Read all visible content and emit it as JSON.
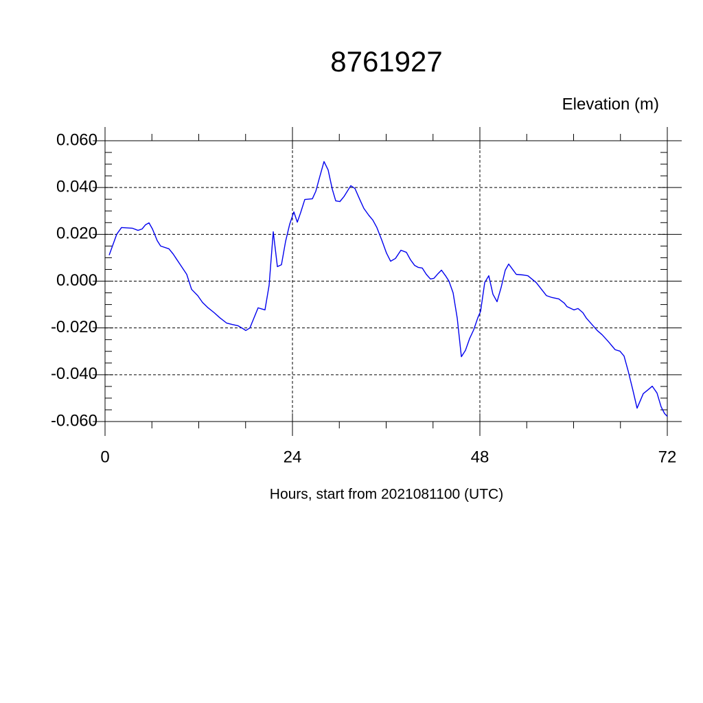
{
  "chart_data": {
    "type": "line",
    "title": "8761927",
    "subtitle": "Elevation (m)",
    "x_label": "Hours, start from 2021081100 (UTC)",
    "xlim": [
      0,
      72
    ],
    "xticks": [
      0,
      24,
      48,
      72
    ],
    "xminorticks": [
      6,
      12,
      18,
      30,
      36,
      42,
      54,
      60,
      66
    ],
    "ylim": [
      -0.06,
      0.06
    ],
    "yticks": [
      {
        "value": -0.06,
        "label": "-0.060"
      },
      {
        "value": -0.04,
        "label": "-0.040"
      },
      {
        "value": -0.02,
        "label": "-0.020"
      },
      {
        "value": 0,
        "label": "0.000"
      },
      {
        "value": 0.02,
        "label": "0.020"
      },
      {
        "value": 0.04,
        "label": "0.040"
      },
      {
        "value": 0.06,
        "label": "0.060"
      }
    ],
    "yminorticks": [
      -0.055,
      -0.05,
      -0.045,
      -0.035,
      -0.03,
      -0.025,
      -0.015,
      -0.01,
      -0.005,
      0.005,
      0.01,
      0.015,
      0.025,
      0.03,
      0.035,
      0.045,
      0.05,
      0.055
    ],
    "grid": true,
    "series": [
      {
        "color": "#0000ee",
        "x": [
          0.53,
          1.49,
          2.11,
          3.52,
          4.22,
          4.75,
          5.19,
          5.63,
          6.07,
          6.68,
          7.12,
          8.18,
          8.7,
          9.58,
          10.46,
          11.08,
          11.87,
          12.48,
          13.19,
          13.98,
          14.68,
          15.56,
          16.26,
          17.05,
          17.76,
          18.02,
          18.55,
          19.6,
          20.48,
          21.01,
          21.54,
          22.07,
          22.59,
          23.12,
          23.65,
          24.18,
          24.62,
          25.05,
          25.58,
          26.55,
          26.99,
          27.52,
          28.04,
          28.57,
          29.1,
          29.54,
          30.07,
          30.59,
          31.47,
          32.0,
          32.62,
          33.14,
          33.76,
          34.29,
          34.81,
          35.43,
          36.04,
          36.57,
          37.19,
          37.89,
          38.59,
          39.12,
          39.65,
          40.09,
          40.62,
          41.14,
          41.67,
          42.11,
          42.64,
          43.08,
          43.6,
          44.04,
          44.57,
          45.1,
          45.63,
          46.15,
          46.68,
          47.21,
          47.74,
          48.09,
          48.62,
          49.14,
          49.67,
          50.2,
          50.73,
          51.25,
          51.69,
          52.13,
          52.66,
          53.63,
          54.15,
          55.21,
          56.53,
          57.23,
          58.11,
          58.81,
          59.16,
          60.04,
          60.57,
          61.19,
          61.63,
          62.42,
          63.03,
          63.65,
          64.44,
          65.32,
          65.93,
          66.46,
          66.99,
          67.6,
          68.13,
          68.92,
          69.54,
          70.07,
          70.68,
          71.21,
          71.65,
          72.0
        ],
        "values": [
          0.0111,
          0.02,
          0.0229,
          0.0226,
          0.0217,
          0.0223,
          0.0241,
          0.0249,
          0.0223,
          0.0173,
          0.015,
          0.0138,
          0.0117,
          0.0073,
          0.0029,
          -0.0035,
          -0.0062,
          -0.0091,
          -0.0114,
          -0.0135,
          -0.0156,
          -0.0179,
          -0.0185,
          -0.0191,
          -0.0205,
          -0.0211,
          -0.02,
          -0.0114,
          -0.0123,
          -0.0018,
          0.0211,
          0.0062,
          0.007,
          0.017,
          0.0244,
          0.0296,
          0.0252,
          0.0293,
          0.0349,
          0.0352,
          0.0384,
          0.0449,
          0.0511,
          0.0475,
          0.0393,
          0.0343,
          0.034,
          0.0361,
          0.0408,
          0.0396,
          0.0349,
          0.0311,
          0.0282,
          0.0261,
          0.0229,
          0.0176,
          0.012,
          0.0085,
          0.0097,
          0.0132,
          0.0123,
          0.0091,
          0.0067,
          0.0059,
          0.0056,
          0.0029,
          0.0009,
          0.0012,
          0.0032,
          0.0047,
          0.0023,
          0,
          -0.005,
          -0.0158,
          -0.0323,
          -0.0296,
          -0.0246,
          -0.0208,
          -0.0156,
          -0.0129,
          -0.0006,
          0.0023,
          -0.0056,
          -0.0088,
          -0.0026,
          0.0047,
          0.0073,
          0.0053,
          0.0029,
          0.0026,
          0.0023,
          -0.0006,
          -0.0062,
          -0.007,
          -0.0076,
          -0.0094,
          -0.0109,
          -0.0123,
          -0.0117,
          -0.0135,
          -0.0158,
          -0.0188,
          -0.0211,
          -0.0229,
          -0.0258,
          -0.0293,
          -0.0299,
          -0.032,
          -0.0384,
          -0.0467,
          -0.0543,
          -0.0481,
          -0.0464,
          -0.0449,
          -0.0478,
          -0.0537,
          -0.0566,
          -0.0578
        ]
      }
    ]
  }
}
